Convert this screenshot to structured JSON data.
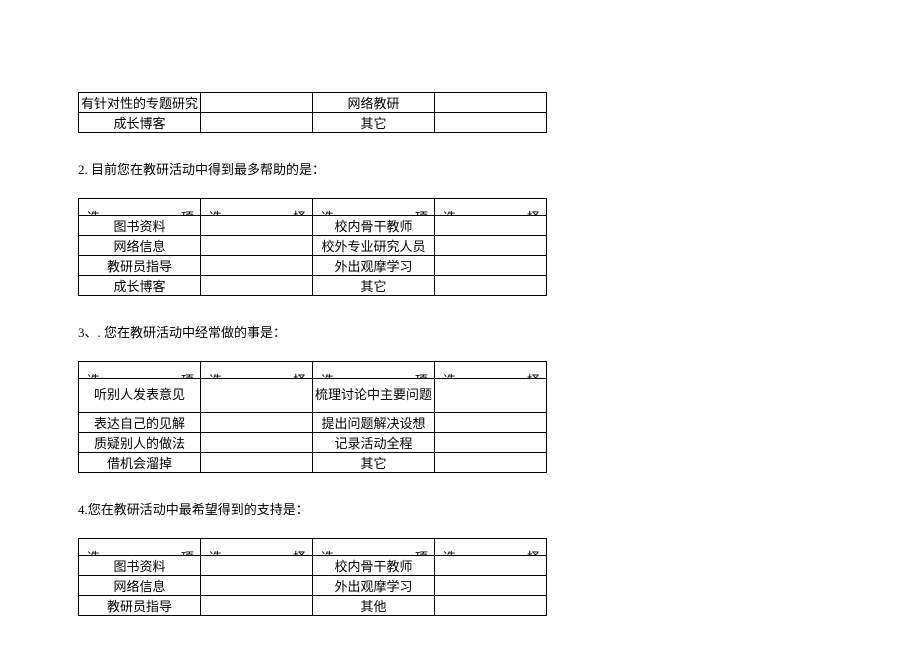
{
  "headers": {
    "option_left": "选",
    "option_right": "项",
    "select_left": "选",
    "select_right": "择"
  },
  "table0": {
    "r1c1": "有针对性的专题研究",
    "r1c3": "网络教研",
    "r2c1": "成长博客",
    "r2c3": "其它"
  },
  "q2": "2.  目前您在教研活动中得到最多帮助的是：",
  "table2": {
    "r1c1": "图书资料",
    "r1c3": "校内骨干教师",
    "r2c1": "网络信息",
    "r2c3": "校外专业研究人员",
    "r3c1": "教研员指导",
    "r3c3": "外出观摩学习",
    "r4c1": "成长博客",
    "r4c3": "其它"
  },
  "q3": "3、. 您在教研活动中经常做的事是：",
  "table3": {
    "r1c1": "听别人发表意见",
    "r1c3": "梳理讨论中主要问题",
    "r2c1": "表达自己的见解",
    "r2c3": "提出问题解决设想",
    "r3c1": "质疑别人的做法",
    "r3c3": "记录活动全程",
    "r4c1": "借机会溜掉",
    "r4c3": "其它"
  },
  "q4": "4.您在教研活动中最希望得到的支持是：",
  "table4": {
    "r1c1": "图书资料",
    "r1c3": "校内骨干教师",
    "r2c1": "网络信息",
    "r2c3": "外出观摩学习",
    "r3c1": "教研员指导",
    "r3c3": "其他"
  }
}
